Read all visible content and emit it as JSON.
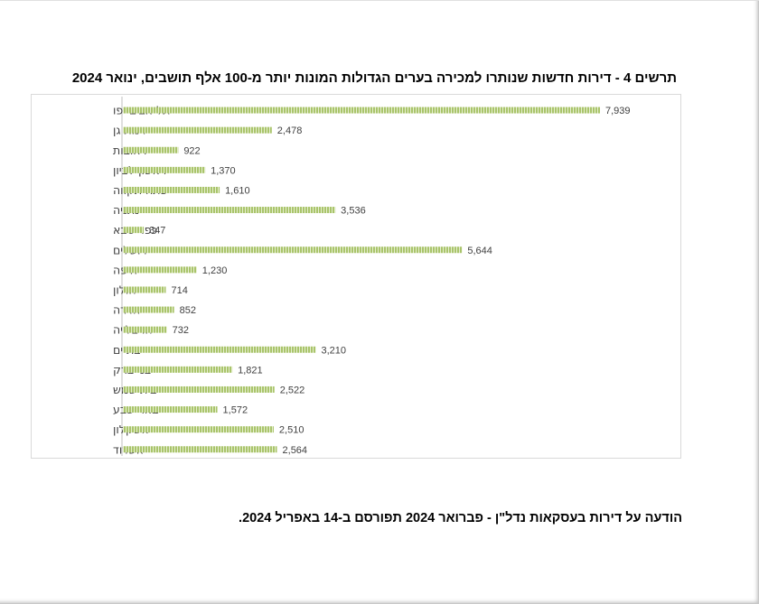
{
  "chart_data": {
    "type": "bar",
    "orientation": "horizontal",
    "title": "תרשים 4 - דירות חדשות שנותרו למכירה בערים הגדולות המונות יותר מ-100 אלף תושבים, ינואר 2024",
    "categories": [
      "תל אביב-יפו",
      "רמת גן",
      "רחובות",
      "ראשון לציון",
      "פתח תקווה",
      "נתניה",
      "כפר סבא",
      "ירושלים",
      "חיפה",
      "חולון",
      "חדרה",
      "הרצלייה",
      "בת ים",
      "בני ברק",
      "בית שמש",
      "באר שבע",
      "אשקלון",
      "אשדוד"
    ],
    "values": [
      7939,
      2478,
      922,
      1370,
      1610,
      3536,
      347,
      5644,
      1230,
      714,
      852,
      732,
      3210,
      1821,
      2522,
      1572,
      2510,
      2564
    ],
    "value_labels": [
      "7,939",
      "2,478",
      "922",
      "1,370",
      "1,610",
      "3,536",
      "347",
      "5,644",
      "1,230",
      "714",
      "852",
      "732",
      "3,210",
      "1,821",
      "2,522",
      "1,572",
      "2,510",
      "2,564"
    ],
    "xlim": [
      0,
      8000
    ],
    "grid": false,
    "legend": "none",
    "bar_color": "#a9c46b",
    "bar_stripe_color": "#e6efcf"
  },
  "footer": {
    "note": "הודעה על דירות בעסקאות נדל\"ן - פברואר 2024 תפורסם ב-14 באפריל 2024."
  }
}
